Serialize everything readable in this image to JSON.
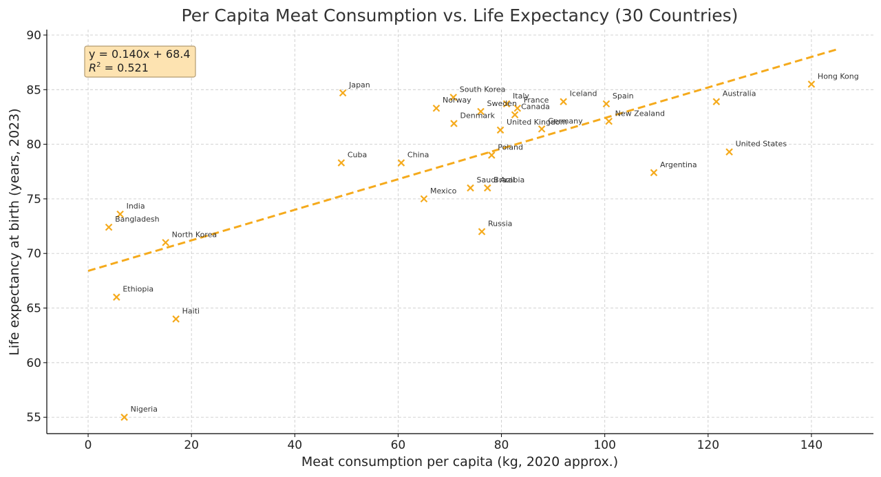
{
  "chart_data": {
    "type": "scatter",
    "title": "Per Capita Meat Consumption vs. Life Expectancy (30 Countries)",
    "xlabel": "Meat consumption per capita (kg, 2020 approx.)",
    "ylabel": "Life expectancy at birth (years, 2023)",
    "xlim": [
      -8,
      152
    ],
    "ylim": [
      53.5,
      90.5
    ],
    "xticks": [
      0,
      20,
      40,
      60,
      80,
      100,
      120,
      140
    ],
    "yticks": [
      55,
      60,
      65,
      70,
      75,
      80,
      85,
      90
    ],
    "grid": true,
    "marker": "x",
    "colors": {
      "points": "#f5aa1c",
      "fit_line": "#f5aa1c",
      "grid": "#cccccc",
      "box_fill": "#fde3b1",
      "box_border": "#b39b70"
    },
    "points": [
      {
        "label": "Hong Kong",
        "x": 140,
        "y": 85.5
      },
      {
        "label": "Australia",
        "x": 121.6,
        "y": 83.9
      },
      {
        "label": "United States",
        "x": 124.1,
        "y": 79.3
      },
      {
        "label": "Argentina",
        "x": 109.5,
        "y": 77.4
      },
      {
        "label": "Spain",
        "x": 100.3,
        "y": 83.7
      },
      {
        "label": "New Zealand",
        "x": 100.8,
        "y": 82.1
      },
      {
        "label": "Iceland",
        "x": 92,
        "y": 83.9
      },
      {
        "label": "Germany",
        "x": 87.8,
        "y": 81.4
      },
      {
        "label": "France",
        "x": 83.1,
        "y": 83.3
      },
      {
        "label": "Canada",
        "x": 82.6,
        "y": 82.7
      },
      {
        "label": "Italy",
        "x": 81,
        "y": 83.7
      },
      {
        "label": "United Kingdom",
        "x": 79.8,
        "y": 81.3
      },
      {
        "label": "Sweden",
        "x": 76,
        "y": 83
      },
      {
        "label": "South Korea",
        "x": 70.7,
        "y": 84.3
      },
      {
        "label": "Norway",
        "x": 67.4,
        "y": 83.3
      },
      {
        "label": "Denmark",
        "x": 70.8,
        "y": 81.9
      },
      {
        "label": "Japan",
        "x": 49.3,
        "y": 84.7
      },
      {
        "label": "Poland",
        "x": 78.1,
        "y": 79
      },
      {
        "label": "Cuba",
        "x": 49,
        "y": 78.3
      },
      {
        "label": "China",
        "x": 60.6,
        "y": 78.3
      },
      {
        "label": "Mexico",
        "x": 65,
        "y": 75
      },
      {
        "label": "Saudi Arabia",
        "x": 74,
        "y": 76
      },
      {
        "label": "Brazil",
        "x": 77.3,
        "y": 76
      },
      {
        "label": "Russia",
        "x": 76.2,
        "y": 72
      },
      {
        "label": "India",
        "x": 6.2,
        "y": 73.6
      },
      {
        "label": "Bangladesh",
        "x": 4,
        "y": 72.4
      },
      {
        "label": "North Korea",
        "x": 15,
        "y": 71
      },
      {
        "label": "Ethiopia",
        "x": 5.5,
        "y": 66
      },
      {
        "label": "Haiti",
        "x": 17,
        "y": 64
      },
      {
        "label": "Nigeria",
        "x": 7,
        "y": 55
      }
    ],
    "fit": {
      "slope": 0.14,
      "intercept": 68.4,
      "x_range": [
        0,
        145
      ],
      "style": "dashed",
      "equation": "y = 0.140x + 68.4",
      "r2_label": "R",
      "r2_sup": "2",
      "r2_value": " = 0.521"
    },
    "equation_box_position": "top-left"
  }
}
